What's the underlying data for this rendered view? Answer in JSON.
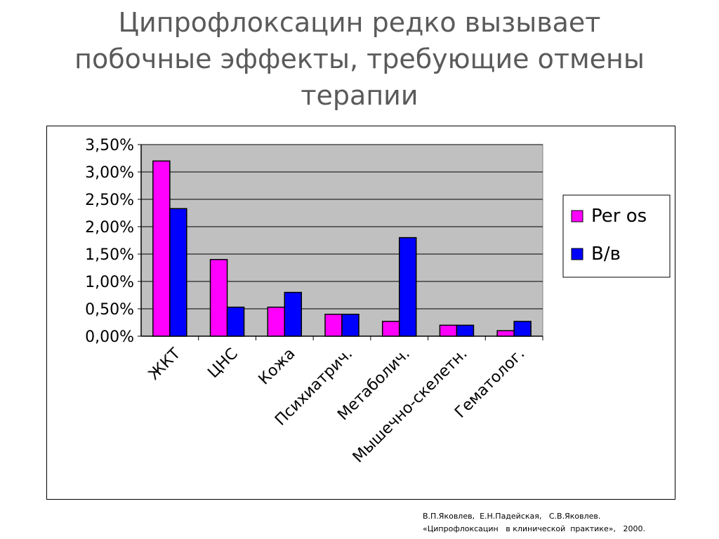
{
  "slide": {
    "title_lines": [
      "Ципрофлоксацин редко вызывает",
      "побочные эффекты, требующие отмены",
      "терапии"
    ],
    "source_lines": [
      "В.П.Яковлев,  Е.Н.Падейская,   С.В.Яковлев.",
      "«Ципрофлоксацин   в клинической  практике»,   2000."
    ]
  },
  "chart_data": {
    "type": "bar",
    "title": "",
    "xlabel": "",
    "ylabel": "",
    "categories": [
      "ЖКТ",
      "ЦНС",
      "Кожа",
      "Психиатрич.",
      "Метаболич.",
      "Мышечно-скелетн.",
      "Гематолог."
    ],
    "series": [
      {
        "name": "Per os",
        "color": "#ff00ff",
        "values": [
          3.2,
          1.4,
          0.53,
          0.4,
          0.27,
          0.2,
          0.1
        ]
      },
      {
        "name": "В/в",
        "color": "#0000ff",
        "values": [
          2.33,
          0.53,
          0.8,
          0.4,
          1.8,
          0.2,
          0.27
        ]
      }
    ],
    "ylim": [
      0,
      3.5
    ],
    "y_ticks": [
      "0,00%",
      "0,50%",
      "1,00%",
      "1,50%",
      "2,00%",
      "2,50%",
      "3,00%",
      "3,50%"
    ],
    "plot_background": "#c0c0c0",
    "grid": true,
    "legend_position": "right"
  }
}
